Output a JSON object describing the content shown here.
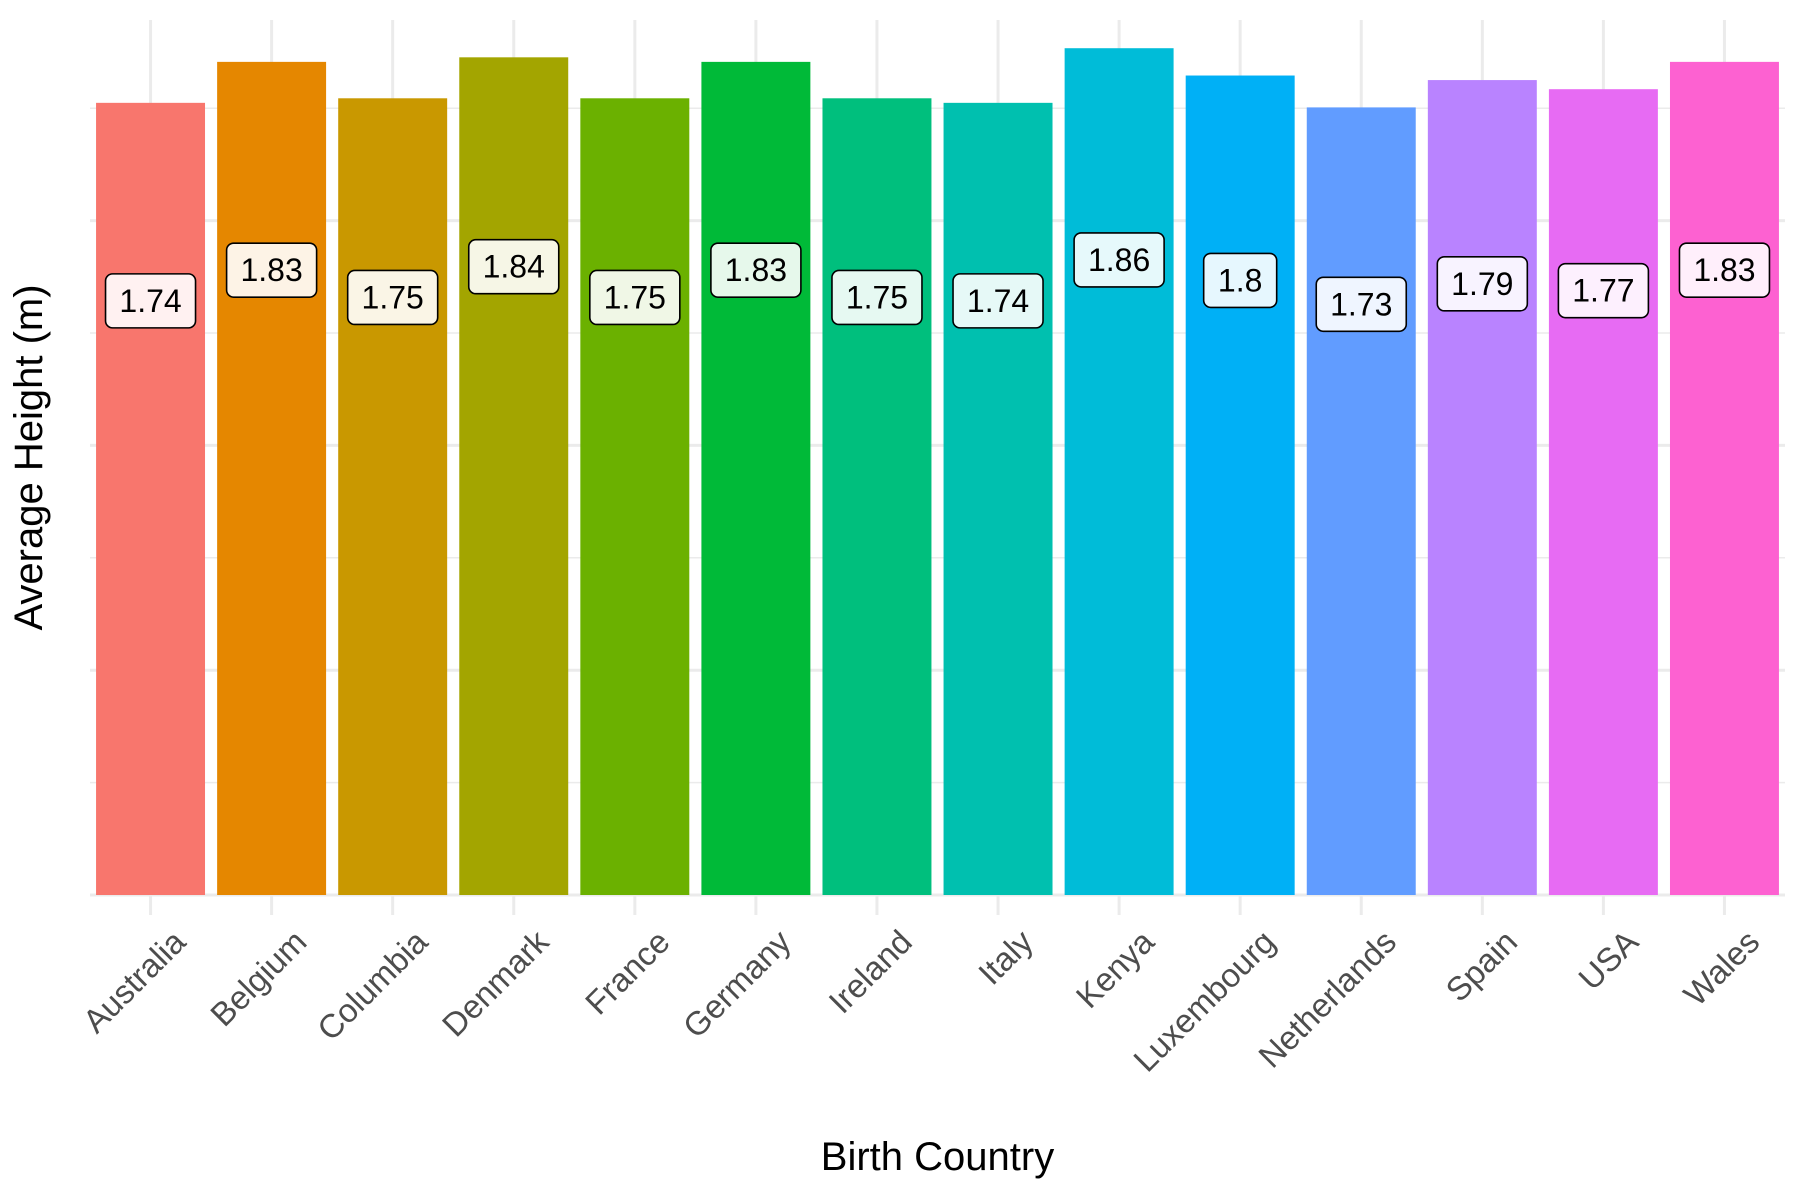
{
  "chart_data": {
    "type": "bar",
    "xlabel": "Birth Country",
    "ylabel": "Average Height (m)",
    "categories": [
      "Australia",
      "Belgium",
      "Columbia",
      "Denmark",
      "France",
      "Germany",
      "Ireland",
      "Italy",
      "Kenya",
      "Luxembourg",
      "Netherlands",
      "Spain",
      "USA",
      "Wales"
    ],
    "values": [
      1.74,
      1.83,
      1.75,
      1.84,
      1.75,
      1.83,
      1.75,
      1.74,
      1.86,
      1.8,
      1.73,
      1.79,
      1.77,
      1.83
    ],
    "data_labels": [
      "1.74",
      "1.83",
      "1.75",
      "1.84",
      "1.75",
      "1.83",
      "1.75",
      "1.74",
      "1.86",
      "1.8",
      "1.73",
      "1.79",
      "1.77",
      "1.83"
    ],
    "colors": [
      "#F8766D",
      "#E58700",
      "#C99800",
      "#A3A500",
      "#6BB100",
      "#00BA38",
      "#00BF7D",
      "#00C0AF",
      "#00BCD8",
      "#00B0F6",
      "#619CFF",
      "#B983FF",
      "#E76BF3",
      "#FD61D1"
    ],
    "ylim": [
      0,
      1.9
    ],
    "y_tick_labels_shown": false,
    "grid": true,
    "legend": "none"
  }
}
